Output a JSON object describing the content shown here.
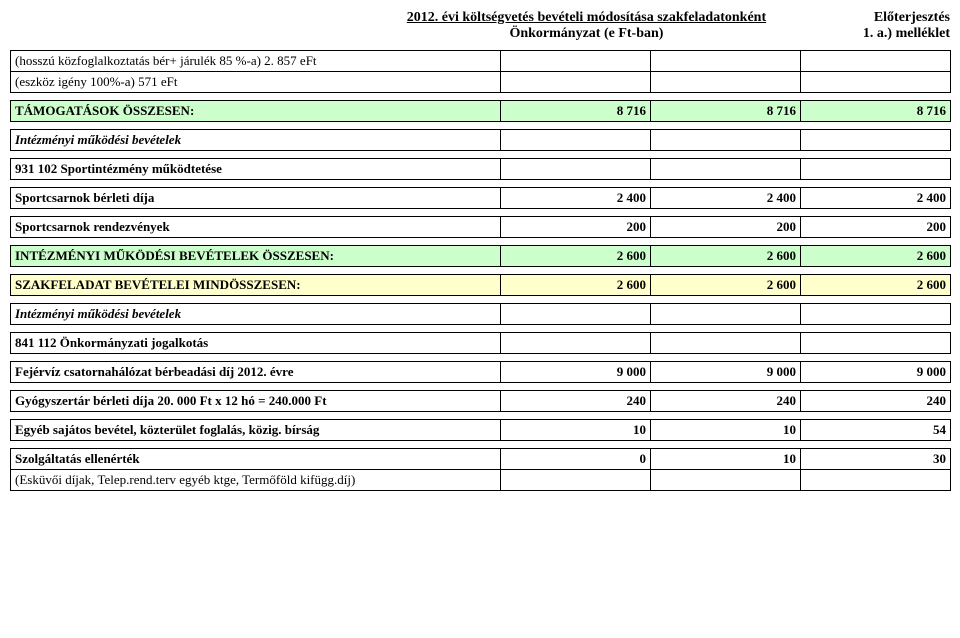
{
  "header": {
    "title_line1": "2012. évi költségvetés bevételi módosítása szakfeladatonként",
    "title_line2": "Önkormányzat (e Ft-ban)",
    "right_line1": "Előterjesztés",
    "right_line2": "1. a.) melléklet"
  },
  "rows": [
    {
      "type": "text",
      "label": "(hosszú közfoglalkoztatás bér+ járulék 85 %-a) 2. 857 eFt",
      "v": [
        "",
        "",
        ""
      ]
    },
    {
      "type": "text",
      "label": "(eszköz igény 100%-a) 571 eFt",
      "v": [
        "",
        "",
        ""
      ]
    },
    {
      "type": "spacer"
    },
    {
      "type": "green",
      "label": "TÁMOGATÁSOK ÖSSZESEN:",
      "cls": "bold",
      "v": [
        "8 716",
        "8 716",
        "8 716"
      ]
    },
    {
      "type": "spacer"
    },
    {
      "type": "text",
      "label": "Intézményi működési bevételek",
      "cls": "bolditalic",
      "v": [
        "",
        "",
        ""
      ]
    },
    {
      "type": "spacer"
    },
    {
      "type": "text",
      "label": "931 102 Sportintézmény működtetése",
      "cls": "bold",
      "v": [
        "",
        "",
        ""
      ]
    },
    {
      "type": "spacer"
    },
    {
      "type": "text",
      "label": "Sportcsarnok bérleti díja",
      "cls": "bold",
      "v": [
        "2 400",
        "2 400",
        "2 400"
      ]
    },
    {
      "type": "spacer"
    },
    {
      "type": "text",
      "label": "Sportcsarnok rendezvények",
      "cls": "bold",
      "v": [
        "200",
        "200",
        "200"
      ]
    },
    {
      "type": "spacer"
    },
    {
      "type": "green",
      "label": "INTÉZMÉNYI MŰKÖDÉSI BEVÉTELEK ÖSSZESEN:",
      "cls": "bold",
      "v": [
        "2 600",
        "2 600",
        "2 600"
      ]
    },
    {
      "type": "spacer"
    },
    {
      "type": "yellow",
      "label": "SZAKFELADAT BEVÉTELEI MINDÖSSZESEN:",
      "cls": "bold",
      "v": [
        "2 600",
        "2 600",
        "2 600"
      ]
    },
    {
      "type": "spacer"
    },
    {
      "type": "text",
      "label": "Intézményi működési bevételek",
      "cls": "bolditalic",
      "v": [
        "",
        "",
        ""
      ]
    },
    {
      "type": "spacer"
    },
    {
      "type": "text",
      "label": "841 112 Önkormányzati jogalkotás",
      "cls": "bold",
      "v": [
        "",
        "",
        ""
      ]
    },
    {
      "type": "spacer"
    },
    {
      "type": "text",
      "label": "Fejérvíz csatornahálózat bérbeadási díj        2012. évre",
      "cls": "bold",
      "v": [
        "9 000",
        "9 000",
        "9 000"
      ]
    },
    {
      "type": "spacer"
    },
    {
      "type": "text",
      "label": "Gyógyszertár bérleti díja          20. 000 Ft x 12 hó = 240.000 Ft",
      "cls": "bold",
      "numcls": "",
      "v": [
        "240",
        "240",
        "240"
      ]
    },
    {
      "type": "spacer"
    },
    {
      "type": "text",
      "label": "Egyéb sajátos bevétel, közterület foglalás, közig. bírság",
      "cls": "bold",
      "v": [
        "10",
        "10",
        "54"
      ]
    },
    {
      "type": "spacer"
    },
    {
      "type": "text",
      "label": "Szolgáltatás ellenérték",
      "cls": "bold",
      "v": [
        "0",
        "10",
        "30"
      ]
    },
    {
      "type": "text",
      "label": "(Esküvői díjak, Telep.rend.terv egyéb ktge, Termőföld kifügg.díj)",
      "v": [
        "",
        "",
        ""
      ]
    }
  ]
}
